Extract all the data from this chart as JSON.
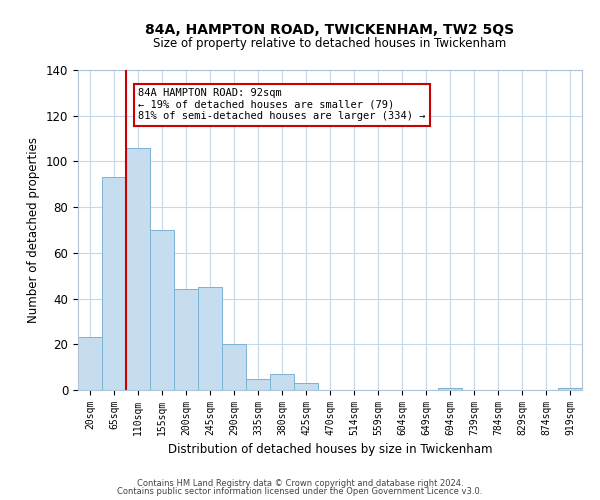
{
  "title": "84A, HAMPTON ROAD, TWICKENHAM, TW2 5QS",
  "subtitle": "Size of property relative to detached houses in Twickenham",
  "xlabel": "Distribution of detached houses by size in Twickenham",
  "ylabel": "Number of detached properties",
  "categories": [
    "20sqm",
    "65sqm",
    "110sqm",
    "155sqm",
    "200sqm",
    "245sqm",
    "290sqm",
    "335sqm",
    "380sqm",
    "425sqm",
    "470sqm",
    "514sqm",
    "559sqm",
    "604sqm",
    "649sqm",
    "694sqm",
    "739sqm",
    "784sqm",
    "829sqm",
    "874sqm",
    "919sqm"
  ],
  "values": [
    23,
    93,
    106,
    70,
    44,
    45,
    20,
    5,
    7,
    3,
    0,
    0,
    0,
    0,
    0,
    1,
    0,
    0,
    0,
    0,
    1
  ],
  "bar_color": "#c6ddf0",
  "bar_edge_color": "#7ab3d4",
  "vline_x": 1.5,
  "vline_color": "#cc0000",
  "ylim": [
    0,
    140
  ],
  "yticks": [
    0,
    20,
    40,
    60,
    80,
    100,
    120,
    140
  ],
  "annotation_text": "84A HAMPTON ROAD: 92sqm\n← 19% of detached houses are smaller (79)\n81% of semi-detached houses are larger (334) →",
  "annotation_box_color": "#ffffff",
  "annotation_box_edge_color": "#cc0000",
  "footer1": "Contains HM Land Registry data © Crown copyright and database right 2024.",
  "footer2": "Contains public sector information licensed under the Open Government Licence v3.0.",
  "background_color": "#ffffff",
  "grid_color": "#c8d8e8"
}
